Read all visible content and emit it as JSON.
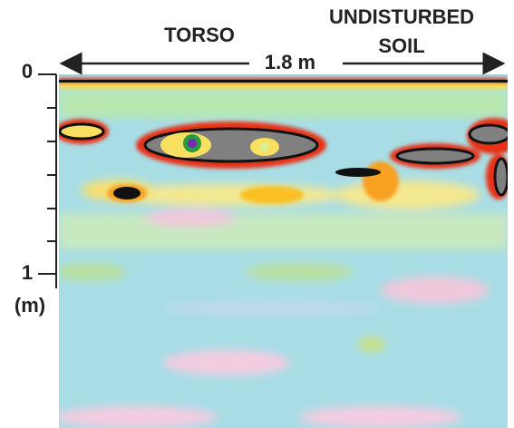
{
  "labels": {
    "left_region": "TORSO",
    "right_region_line1": "UNDISTURBED",
    "right_region_line2": "SOIL",
    "width": "1.8 m"
  },
  "depth_axis": {
    "top_label": "0",
    "bottom_label": "1",
    "unit": "(m)"
  }
}
